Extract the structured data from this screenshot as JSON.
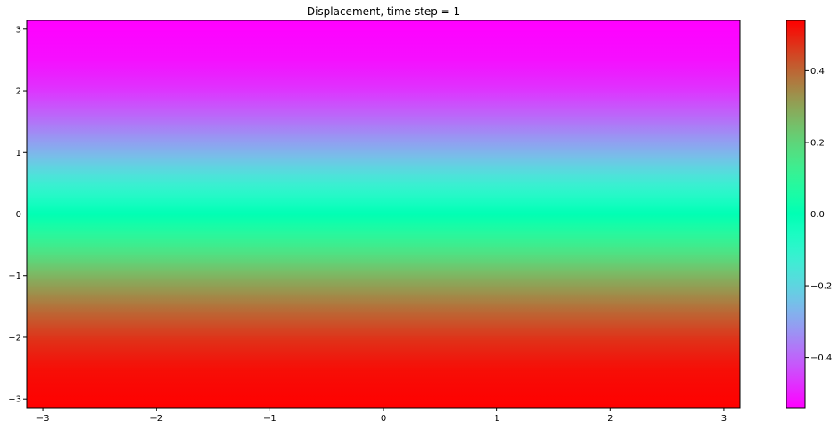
{
  "chart_data": {
    "type": "heatmap",
    "title": "Displacement, time step = 1",
    "xlabel": "",
    "ylabel": "",
    "xlim": [
      -3.14159,
      3.14159
    ],
    "ylim": [
      -3.14159,
      3.14159
    ],
    "x_ticks": [
      -3,
      -2,
      -1,
      0,
      1,
      2,
      3
    ],
    "x_tick_labels": [
      "−3",
      "−2",
      "−1",
      "0",
      "1",
      "2",
      "3"
    ],
    "y_ticks": [
      -3,
      -2,
      -1,
      0,
      1,
      2,
      3
    ],
    "y_tick_labels": [
      "−3",
      "−2",
      "−1",
      "0",
      "1",
      "2",
      "3"
    ],
    "colormap": "rainbow",
    "colorbar": {
      "vmin": -0.54,
      "vmax": 0.54,
      "ticks": [
        -0.4,
        -0.2,
        0.0,
        0.2,
        0.4
      ],
      "tick_labels": [
        "−0.4",
        "−0.2",
        "0.0",
        "0.2",
        "0.4"
      ]
    },
    "field_profile": {
      "y": [
        -3.14,
        -2.5,
        -2.0,
        -1.5,
        -1.0,
        -0.5,
        0.0,
        0.5,
        1.0,
        1.5,
        2.0,
        2.5,
        3.14
      ],
      "value": [
        0.54,
        0.52,
        0.47,
        0.38,
        0.27,
        0.13,
        0.0,
        -0.13,
        -0.27,
        -0.38,
        -0.47,
        -0.52,
        -0.54
      ]
    },
    "grid": false
  }
}
